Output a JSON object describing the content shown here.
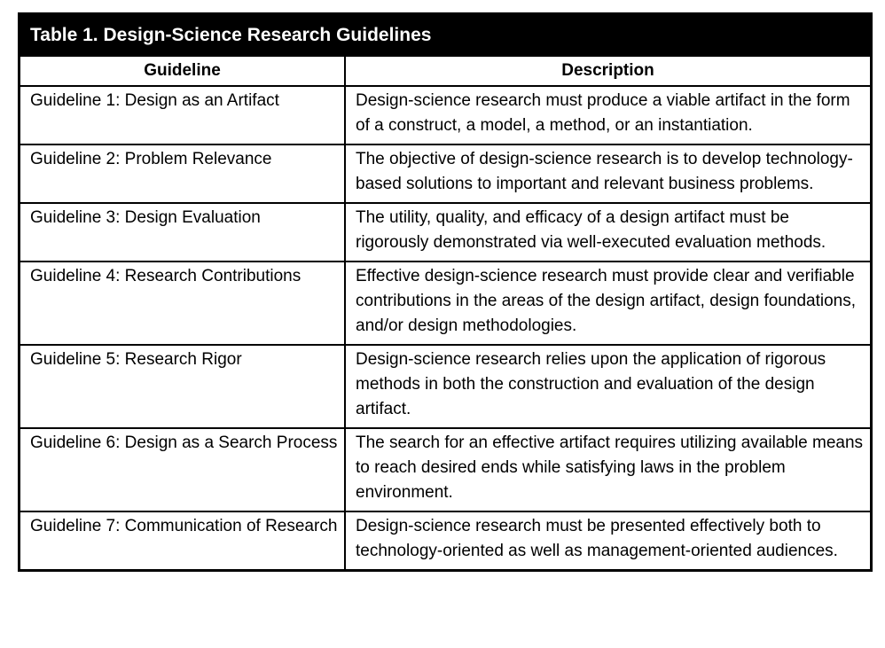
{
  "table": {
    "title": "Table 1.  Design-Science Research Guidelines",
    "headers": {
      "guideline": "Guideline",
      "description": "Description"
    },
    "rows": [
      {
        "guideline": "Guideline 1: Design as an Artifact",
        "description": "Design-science research must produce a viable artifact in the form of a construct, a model, a method, or an instantiation."
      },
      {
        "guideline": "Guideline 2: Problem Relevance",
        "description": "The objective of design-science research is to develop technology-based solutions to important and relevant business problems."
      },
      {
        "guideline": "Guideline 3: Design Evaluation",
        "description": "The utility, quality, and efficacy of a design artifact must be rigorously demonstrated via well-executed evaluation methods."
      },
      {
        "guideline": "Guideline 4: Research Contributions",
        "description": "Effective design-science research must provide clear and verifiable contributions in the areas of the design artifact, design foundations, and/or design methodologies."
      },
      {
        "guideline": "Guideline 5: Research Rigor",
        "description": "Design-science research relies upon the application of rigorous methods in both the construction and evaluation of the design artifact."
      },
      {
        "guideline": "Guideline 6: Design as a Search Process",
        "description": "The search for an effective artifact requires utilizing available means to reach desired ends while satisfying laws in the problem environment."
      },
      {
        "guideline": "Guideline 7: Communication of Research",
        "description": "Design-science research must be presented effectively both to technology-oriented as well as management-oriented audiences."
      }
    ]
  }
}
